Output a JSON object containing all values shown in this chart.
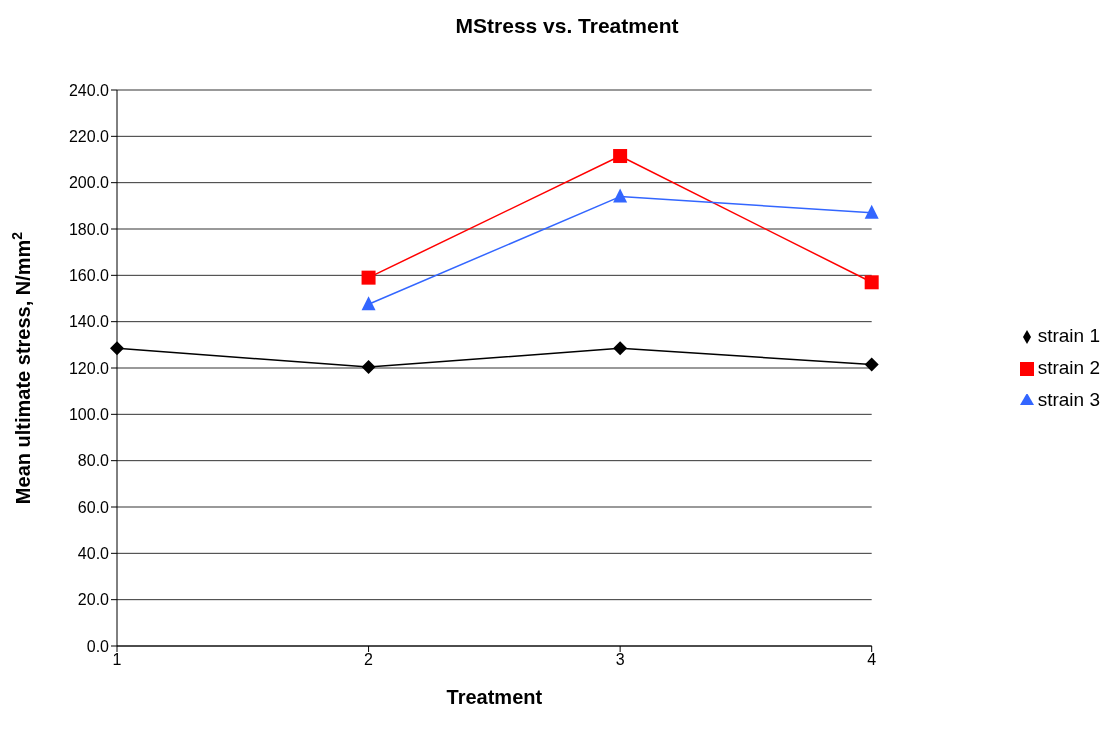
{
  "chart_data": {
    "type": "line",
    "title": "MStress vs. Treatment",
    "xlabel": "Treatment",
    "ylabel": "Mean ultimate stress, N/mm$^{2}$",
    "x": [
      1,
      2,
      3,
      4
    ],
    "xlim": [
      1,
      4
    ],
    "xticks": [
      1,
      2,
      3,
      4
    ],
    "ylim": [
      0,
      240
    ],
    "yticks": [
      {
        "value": 0,
        "label": "0.0"
      },
      {
        "value": 20,
        "label": "20.0"
      },
      {
        "value": 40,
        "label": "40.0"
      },
      {
        "value": 60,
        "label": "60.0"
      },
      {
        "value": 80,
        "label": "80.0"
      },
      {
        "value": 100,
        "label": "100.0"
      },
      {
        "value": 120,
        "label": "120.0"
      },
      {
        "value": 140,
        "label": "140.0"
      },
      {
        "value": 160,
        "label": "160.0"
      },
      {
        "value": 180,
        "label": "180.0"
      },
      {
        "value": 200,
        "label": "200.0"
      },
      {
        "value": 220,
        "label": "220.0"
      },
      {
        "value": 240,
        "label": "240.0"
      }
    ],
    "grid": "y",
    "legend": "right",
    "line_style": "solid",
    "series": [
      {
        "name": "strain 1",
        "color": "#000000",
        "marker": "diamond",
        "values": [
          128.5,
          120.4,
          128.5,
          121.5
        ]
      },
      {
        "name": "strain 2",
        "color": "#ff0000",
        "marker": "square",
        "values": [
          null,
          159,
          211.5,
          157
        ]
      },
      {
        "name": "strain 3",
        "color": "#3366ff",
        "marker": "triangle",
        "values": [
          null,
          147.5,
          194,
          187
        ]
      }
    ]
  }
}
